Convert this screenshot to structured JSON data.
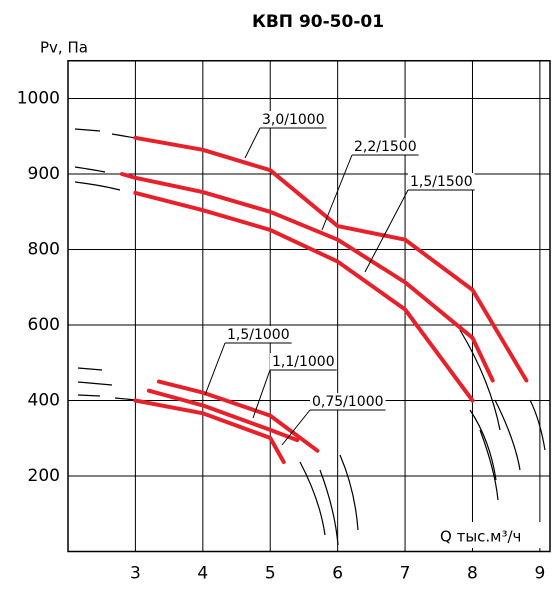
{
  "chart_data": {
    "type": "line",
    "title": "КВП 90-50-01",
    "y_label": "Pv, Па",
    "x_label": "Q тыс.м³/ч",
    "xlim": [
      2,
      9.15
    ],
    "xticks": [
      3,
      4,
      5,
      6,
      7,
      8,
      9
    ],
    "ylim": [
      0,
      1050
    ],
    "yticks": [
      200,
      400,
      600,
      800,
      900,
      1000
    ],
    "grid": true,
    "series": [
      {
        "name": "3,0/1000",
        "color": "#e8202a",
        "x": [
          3,
          4,
          5,
          6,
          7,
          8,
          8.8
        ],
        "values": [
          948,
          932,
          905,
          831,
          813,
          693,
          453
        ]
      },
      {
        "name": "2,2/1500",
        "color": "#e8202a",
        "x": [
          2.8,
          3,
          4,
          5,
          6,
          7,
          8,
          8.3
        ],
        "values": [
          900,
          895,
          876,
          850,
          813,
          713,
          566,
          453
        ]
      },
      {
        "name": "1,5/1500",
        "color": "#e8202a",
        "x": [
          3,
          4,
          5,
          6,
          7,
          8
        ],
        "values": [
          875,
          852,
          826,
          768,
          641,
          400
        ]
      },
      {
        "name": "1,5/1000",
        "color": "#e8202a",
        "x": [
          3.35,
          4,
          5,
          5.7
        ],
        "values": [
          450,
          421,
          360,
          267
        ]
      },
      {
        "name": "1,1/1000",
        "color": "#e8202a",
        "x": [
          3.2,
          4,
          5,
          5.4
        ],
        "values": [
          426,
          387,
          322,
          295
        ]
      },
      {
        "name": "0,75/1000",
        "color": "#e8202a",
        "x": [
          3,
          4,
          5,
          5.2
        ],
        "values": [
          400,
          366,
          301,
          237
        ]
      }
    ]
  }
}
